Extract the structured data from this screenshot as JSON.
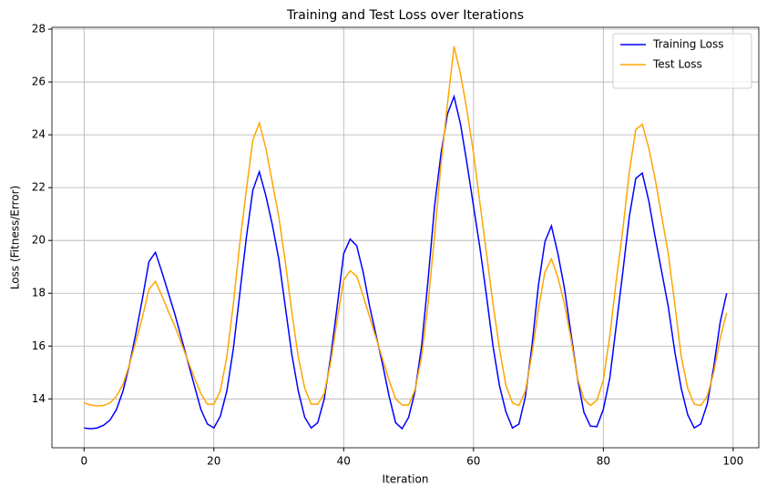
{
  "chart_data": {
    "type": "line",
    "title": "Training and Test Loss over Iterations",
    "xlabel": "Iteration",
    "ylabel": "Loss (Fitness/Error)",
    "x": [
      0,
      1,
      2,
      3,
      4,
      5,
      6,
      7,
      8,
      9,
      10,
      11,
      12,
      13,
      14,
      15,
      16,
      17,
      18,
      19,
      20,
      21,
      22,
      23,
      24,
      25,
      26,
      27,
      28,
      29,
      30,
      31,
      32,
      33,
      34,
      35,
      36,
      37,
      38,
      39,
      40,
      41,
      42,
      43,
      44,
      45,
      46,
      47,
      48,
      49,
      50,
      51,
      52,
      53,
      54,
      55,
      56,
      57,
      58,
      59,
      60,
      61,
      62,
      63,
      64,
      65,
      66,
      67,
      68,
      69,
      70,
      71,
      72,
      73,
      74,
      75,
      76,
      77,
      78,
      79,
      80,
      81,
      82,
      83,
      84,
      85,
      86,
      87,
      88,
      89,
      90,
      91,
      92,
      93,
      94,
      95,
      96,
      97,
      98,
      99
    ],
    "series": [
      {
        "name": "Training Loss",
        "color": "#0000ff",
        "values": [
          12.9,
          12.87,
          12.9,
          13.0,
          13.2,
          13.6,
          14.3,
          15.3,
          16.5,
          17.8,
          19.2,
          19.55,
          18.8,
          18.0,
          17.2,
          16.3,
          15.4,
          14.5,
          13.6,
          13.05,
          12.9,
          13.35,
          14.3,
          15.9,
          18.0,
          20.1,
          21.9,
          22.6,
          21.7,
          20.6,
          19.3,
          17.5,
          15.7,
          14.3,
          13.3,
          12.9,
          13.1,
          14.0,
          15.6,
          17.5,
          19.5,
          20.05,
          19.8,
          18.8,
          17.5,
          16.4,
          15.3,
          14.1,
          13.1,
          12.87,
          13.3,
          14.3,
          16.0,
          18.5,
          21.3,
          23.3,
          24.8,
          25.45,
          24.4,
          22.9,
          21.3,
          19.7,
          17.9,
          16.0,
          14.5,
          13.5,
          12.9,
          13.05,
          14.1,
          16.0,
          18.3,
          19.95,
          20.55,
          19.5,
          18.2,
          16.5,
          14.8,
          13.5,
          12.97,
          12.95,
          13.6,
          14.8,
          16.8,
          18.8,
          20.9,
          22.35,
          22.55,
          21.5,
          20.1,
          18.8,
          17.5,
          15.8,
          14.4,
          13.4,
          12.9,
          13.05,
          13.8,
          15.2,
          16.9,
          18.0
        ]
      },
      {
        "name": "Test Loss",
        "color": "#ffa500",
        "values": [
          13.85,
          13.77,
          13.73,
          13.75,
          13.85,
          14.1,
          14.55,
          15.3,
          16.2,
          17.1,
          18.15,
          18.45,
          17.9,
          17.3,
          16.75,
          16.1,
          15.45,
          14.8,
          14.2,
          13.8,
          13.8,
          14.3,
          15.6,
          17.6,
          19.9,
          21.9,
          23.8,
          24.45,
          23.5,
          22.2,
          20.9,
          19.2,
          17.3,
          15.6,
          14.4,
          13.8,
          13.8,
          14.2,
          15.4,
          17.0,
          18.5,
          18.85,
          18.65,
          17.9,
          17.1,
          16.3,
          15.5,
          14.7,
          14.0,
          13.77,
          13.77,
          14.35,
          15.6,
          17.6,
          20.2,
          22.9,
          25.2,
          27.35,
          26.3,
          24.9,
          23.3,
          21.4,
          19.5,
          17.6,
          15.9,
          14.5,
          13.85,
          13.75,
          14.3,
          15.7,
          17.4,
          18.8,
          19.3,
          18.6,
          17.6,
          16.3,
          14.8,
          14.0,
          13.75,
          13.95,
          14.7,
          16.4,
          18.5,
          20.4,
          22.6,
          24.2,
          24.4,
          23.5,
          22.3,
          20.9,
          19.5,
          17.6,
          15.6,
          14.4,
          13.8,
          13.75,
          14.1,
          15.0,
          16.3,
          17.25
        ]
      }
    ],
    "xlim": [
      -4.95,
      103.95
    ],
    "xticks": [
      0,
      20,
      40,
      60,
      80,
      100
    ],
    "ylim": [
      12.15,
      28.07
    ],
    "yticks": [
      14,
      16,
      18,
      20,
      22,
      24,
      26,
      28
    ],
    "grid": true,
    "legend": "upper right"
  }
}
